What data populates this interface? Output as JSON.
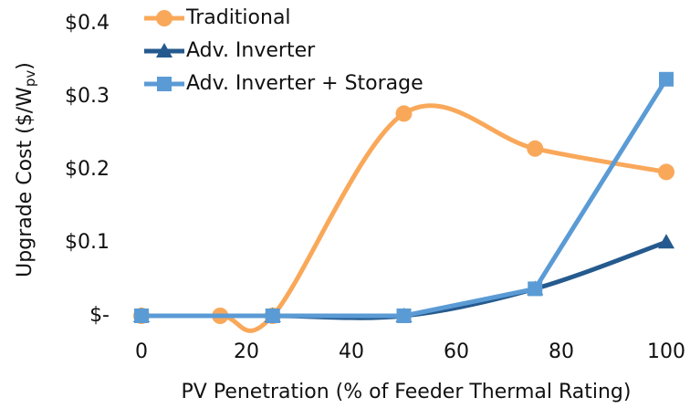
{
  "chart_data": {
    "type": "line",
    "xlabel": "PV Penetration (% of Feeder Thermal Rating)",
    "ylabel": "Upgrade Cost ($/W",
    "ylabel_sub": "pv",
    "ylabel_end": ")",
    "xlim": [
      0,
      100
    ],
    "xticks": [
      0,
      20,
      40,
      60,
      80,
      100
    ],
    "ylim": [
      0,
      0.4
    ],
    "yticks": [
      {
        "value": 0,
        "label": "$-"
      },
      {
        "value": 0.1,
        "label": "$0.1"
      },
      {
        "value": 0.2,
        "label": "$0.2"
      },
      {
        "value": 0.3,
        "label": "$0.3"
      },
      {
        "value": 0.4,
        "label": "$0.4"
      }
    ],
    "grid": false,
    "legend": "upper left",
    "series": [
      {
        "name": "Traditional",
        "color": "#f9a85a",
        "marker": "circle",
        "smooth": true,
        "x": [
          0,
          15,
          25,
          50,
          75,
          100
        ],
        "values": [
          0,
          0,
          0,
          0.277,
          0.229,
          0.197
        ]
      },
      {
        "name": "Adv. Inverter",
        "color": "#255a8e",
        "marker": "triangle",
        "smooth": true,
        "x": [
          0,
          25,
          50,
          75,
          100
        ],
        "values": [
          0,
          0,
          0,
          0.037,
          0.101
        ]
      },
      {
        "name": "Adv. Inverter + Storage",
        "color": "#5b9bd5",
        "marker": "square",
        "smooth": false,
        "x": [
          0,
          25,
          50,
          75,
          100
        ],
        "values": [
          0,
          0,
          0,
          0.037,
          0.324
        ]
      }
    ]
  }
}
